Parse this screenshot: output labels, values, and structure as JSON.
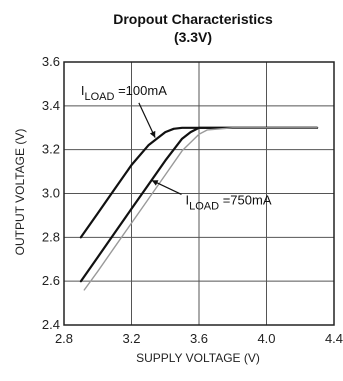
{
  "chart_data": {
    "type": "line",
    "title": "Dropout Characteristics",
    "subtitle": "(3.3V)",
    "xlabel": "SUPPLY VOLTAGE (V)",
    "ylabel": "OUTPUT VOLTAGE (V)",
    "xlim": [
      2.8,
      4.4
    ],
    "ylim": [
      2.4,
      3.6
    ],
    "x_ticks": [
      "2.8",
      "3.2",
      "3.6",
      "4.0",
      "4.4"
    ],
    "y_ticks": [
      "2.4",
      "2.6",
      "2.8",
      "3.0",
      "3.2",
      "3.4",
      "3.6"
    ],
    "grid": true,
    "series": [
      {
        "name": "ILOAD = 100mA",
        "color": "#111111",
        "x": [
          2.9,
          3.0,
          3.1,
          3.2,
          3.3,
          3.4,
          3.45,
          3.5,
          3.6,
          3.8,
          4.3
        ],
        "y": [
          2.8,
          2.91,
          3.02,
          3.13,
          3.22,
          3.28,
          3.295,
          3.3,
          3.3,
          3.3,
          3.3
        ]
      },
      {
        "name": "ILOAD = 750mA",
        "color": "#111111",
        "x": [
          2.9,
          3.0,
          3.1,
          3.2,
          3.3,
          3.4,
          3.5,
          3.55,
          3.6,
          3.8,
          4.3
        ],
        "y": [
          2.6,
          2.71,
          2.82,
          2.93,
          3.04,
          3.15,
          3.25,
          3.28,
          3.3,
          3.3,
          3.3
        ]
      },
      {
        "color": "#9a9a9a",
        "x": [
          2.92,
          3.0,
          3.1,
          3.2,
          3.3,
          3.4,
          3.5,
          3.6,
          3.65,
          3.8,
          4.3
        ],
        "y": [
          2.56,
          2.645,
          2.755,
          2.865,
          2.975,
          3.085,
          3.195,
          3.27,
          3.29,
          3.3,
          3.3
        ]
      }
    ],
    "annotations": [
      {
        "prefix": "I",
        "sub": "LOAD",
        "suffix": " =100mA",
        "x": 2.9,
        "y": 3.45,
        "arrow_to": [
          3.34,
          3.255
        ]
      },
      {
        "prefix": "I",
        "sub": "LOAD",
        "suffix": " =750mA",
        "x": 3.52,
        "y": 2.95,
        "arrow_to": [
          3.32,
          3.06
        ]
      }
    ]
  }
}
